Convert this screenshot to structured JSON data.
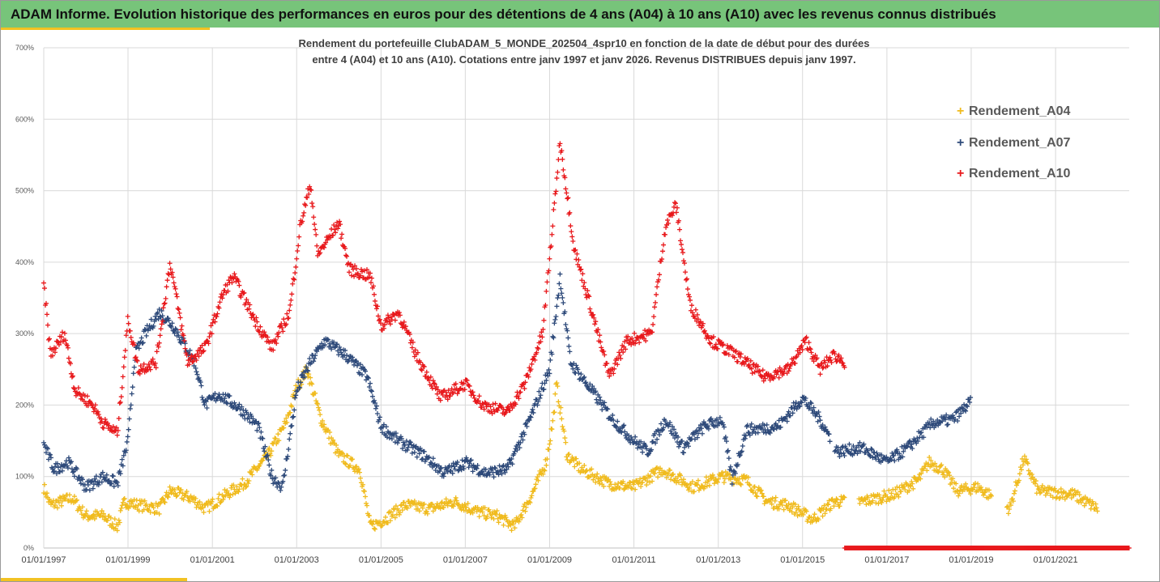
{
  "banner": {
    "title": "ADAM Informe. Evolution historique des performances en euros pour des détentions de 4 ans (A04) à 10 ans (A10) avec les revenus connus distribués"
  },
  "colors": {
    "banner_bg": "#77c47a",
    "accent": "#f2c222",
    "A04": "#f0bb1e",
    "A07": "#2e4a7a",
    "A10": "#e8191c",
    "grid": "#d9d9d9",
    "axis_text": "#595959"
  },
  "chart_data": {
    "type": "scatter",
    "marker": "plus",
    "title_line1": "Rendement du portefeuille ClubADAM_5_MONDE_202504_4spr10  en fonction de la date de début pour des durées",
    "title_line2": "entre 4 (A04) et 10 ans (A10). Cotations entre janv 1997 et janv 2026. Revenus DISTRIBUES depuis janv 1997.",
    "xlabel": "",
    "ylabel": "",
    "x_range": [
      "1997-01-01",
      "2022-10-01"
    ],
    "ylim": [
      0,
      700
    ],
    "y_ticks": [
      0,
      100,
      200,
      300,
      400,
      500,
      600,
      700
    ],
    "y_tick_labels": [
      "0%",
      "100%",
      "200%",
      "300%",
      "400%",
      "500%",
      "600%",
      "700%"
    ],
    "x_tick_labels": [
      "01/01/1997",
      "01/01/1999",
      "01/01/2001",
      "01/01/2003",
      "01/01/2005",
      "01/01/2007",
      "01/01/2009",
      "01/01/2011",
      "01/01/2013",
      "01/01/2015",
      "01/01/2017",
      "01/01/2019",
      "01/01/2021"
    ],
    "grid": true,
    "legend_position": "top-right",
    "series": [
      {
        "name": "Rendement_A04",
        "key": "A04",
        "x_start": "1997-01",
        "x_end": "2022-01",
        "gap": [
          "2016-01",
          "2016-05"
        ],
        "gap2": [
          "2019-07",
          "2019-11"
        ],
        "points": [
          [
            "1997-01",
            85
          ],
          [
            "1997-03",
            60
          ],
          [
            "1997-06",
            65
          ],
          [
            "1997-09",
            70
          ],
          [
            "1998-01",
            45
          ],
          [
            "1998-06",
            45
          ],
          [
            "1998-10",
            30
          ],
          [
            "1998-12",
            65
          ],
          [
            "1999-04",
            60
          ],
          [
            "1999-10",
            55
          ],
          [
            "2000-01",
            80
          ],
          [
            "2000-07",
            70
          ],
          [
            "2000-11",
            55
          ],
          [
            "2001-05",
            75
          ],
          [
            "2001-10",
            90
          ],
          [
            "2002-05",
            130
          ],
          [
            "2002-10",
            175
          ],
          [
            "2003-01",
            225
          ],
          [
            "2003-04",
            250
          ],
          [
            "2003-08",
            180
          ],
          [
            "2004-01",
            130
          ],
          [
            "2004-07",
            110
          ],
          [
            "2004-10",
            30
          ],
          [
            "2005-02",
            40
          ],
          [
            "2005-08",
            60
          ],
          [
            "2006-03",
            55
          ],
          [
            "2006-10",
            65
          ],
          [
            "2007-05",
            50
          ],
          [
            "2007-10",
            45
          ],
          [
            "2008-03",
            30
          ],
          [
            "2008-08",
            75
          ],
          [
            "2008-12",
            120
          ],
          [
            "2009-02",
            180
          ],
          [
            "2009-03",
            230
          ],
          [
            "2009-06",
            130
          ],
          [
            "2009-10",
            110
          ],
          [
            "2010-06",
            90
          ],
          [
            "2011-01",
            85
          ],
          [
            "2011-09",
            110
          ],
          [
            "2012-06",
            85
          ],
          [
            "2013-02",
            100
          ],
          [
            "2013-09",
            95
          ],
          [
            "2014-03",
            65
          ],
          [
            "2014-09",
            60
          ],
          [
            "2015-04",
            40
          ],
          [
            "2015-10",
            65
          ],
          [
            "2016-06",
            65
          ],
          [
            "2017-03",
            75
          ],
          [
            "2017-10",
            95
          ],
          [
            "2018-01",
            120
          ],
          [
            "2018-05",
            110
          ],
          [
            "2018-09",
            80
          ],
          [
            "2019-03",
            85
          ],
          [
            "2019-12",
            55
          ],
          [
            "2020-04",
            125
          ],
          [
            "2020-08",
            80
          ],
          [
            "2021-06",
            75
          ],
          [
            "2022-01",
            55
          ]
        ]
      },
      {
        "name": "Rendement_A07",
        "key": "A07",
        "x_start": "1997-01",
        "x_end": "2019-01",
        "gap": [
          "2015-09",
          "2015-10"
        ],
        "points": [
          [
            "1997-01",
            145
          ],
          [
            "1997-04",
            110
          ],
          [
            "1997-08",
            120
          ],
          [
            "1998-01",
            85
          ],
          [
            "1998-06",
            100
          ],
          [
            "1998-10",
            90
          ],
          [
            "1999-01",
            150
          ],
          [
            "1999-03",
            270
          ],
          [
            "1999-06",
            300
          ],
          [
            "1999-10",
            330
          ],
          [
            "2000-02",
            310
          ],
          [
            "2000-08",
            260
          ],
          [
            "2000-11",
            200
          ],
          [
            "2001-03",
            215
          ],
          [
            "2001-09",
            195
          ],
          [
            "2002-02",
            170
          ],
          [
            "2002-06",
            100
          ],
          [
            "2002-09",
            85
          ],
          [
            "2003-01",
            220
          ],
          [
            "2003-05",
            260
          ],
          [
            "2003-09",
            290
          ],
          [
            "2004-03",
            270
          ],
          [
            "2004-09",
            240
          ],
          [
            "2005-01",
            170
          ],
          [
            "2005-06",
            150
          ],
          [
            "2006-01",
            130
          ],
          [
            "2006-07",
            105
          ],
          [
            "2007-01",
            120
          ],
          [
            "2007-07",
            105
          ],
          [
            "2008-01",
            110
          ],
          [
            "2008-07",
            175
          ],
          [
            "2009-01",
            250
          ],
          [
            "2009-04",
            380
          ],
          [
            "2009-07",
            260
          ],
          [
            "2010-01",
            220
          ],
          [
            "2010-07",
            180
          ],
          [
            "2011-01",
            150
          ],
          [
            "2011-05",
            135
          ],
          [
            "2011-10",
            180
          ],
          [
            "2012-03",
            140
          ],
          [
            "2012-09",
            170
          ],
          [
            "2013-02",
            180
          ],
          [
            "2013-05",
            95
          ],
          [
            "2013-09",
            165
          ],
          [
            "2014-06",
            170
          ],
          [
            "2015-01",
            210
          ],
          [
            "2015-06",
            180
          ],
          [
            "2015-11",
            135
          ],
          [
            "2016-06",
            140
          ],
          [
            "2017-01",
            120
          ],
          [
            "2017-07",
            140
          ],
          [
            "2018-02",
            175
          ],
          [
            "2018-08",
            180
          ],
          [
            "2019-01",
            205
          ]
        ]
      },
      {
        "name": "Rendement_A10",
        "key": "A10",
        "x_start": "1997-01",
        "x_end": "2016-01",
        "points": [
          [
            "1997-01",
            370
          ],
          [
            "1997-03",
            270
          ],
          [
            "1997-07",
            300
          ],
          [
            "1997-10",
            220
          ],
          [
            "1998-03",
            200
          ],
          [
            "1998-06",
            175
          ],
          [
            "1998-10",
            160
          ],
          [
            "1999-01",
            320
          ],
          [
            "1999-04",
            250
          ],
          [
            "1999-09",
            260
          ],
          [
            "2000-01",
            400
          ],
          [
            "2000-06",
            260
          ],
          [
            "2000-11",
            280
          ],
          [
            "2001-04",
            355
          ],
          [
            "2001-07",
            380
          ],
          [
            "2002-01",
            320
          ],
          [
            "2002-06",
            280
          ],
          [
            "2002-11",
            330
          ],
          [
            "2003-02",
            450
          ],
          [
            "2003-05",
            510
          ],
          [
            "2003-07",
            410
          ],
          [
            "2004-01",
            455
          ],
          [
            "2004-04",
            390
          ],
          [
            "2004-10",
            380
          ],
          [
            "2005-01",
            310
          ],
          [
            "2005-06",
            330
          ],
          [
            "2005-11",
            270
          ],
          [
            "2006-06",
            210
          ],
          [
            "2007-01",
            230
          ],
          [
            "2007-06",
            200
          ],
          [
            "2008-01",
            190
          ],
          [
            "2008-06",
            230
          ],
          [
            "2008-11",
            300
          ],
          [
            "2009-02",
            460
          ],
          [
            "2009-04",
            570
          ],
          [
            "2009-08",
            420
          ],
          [
            "2009-12",
            350
          ],
          [
            "2010-06",
            240
          ],
          [
            "2010-11",
            290
          ],
          [
            "2011-06",
            300
          ],
          [
            "2011-10",
            450
          ],
          [
            "2012-01",
            480
          ],
          [
            "2012-05",
            340
          ],
          [
            "2012-11",
            290
          ],
          [
            "2013-06",
            270
          ],
          [
            "2014-02",
            240
          ],
          [
            "2014-09",
            250
          ],
          [
            "2015-02",
            290
          ],
          [
            "2015-06",
            250
          ],
          [
            "2015-10",
            270
          ],
          [
            "2016-01",
            260
          ]
        ],
        "zero_run": [
          "2016-01",
          "2022-10"
        ]
      }
    ]
  }
}
